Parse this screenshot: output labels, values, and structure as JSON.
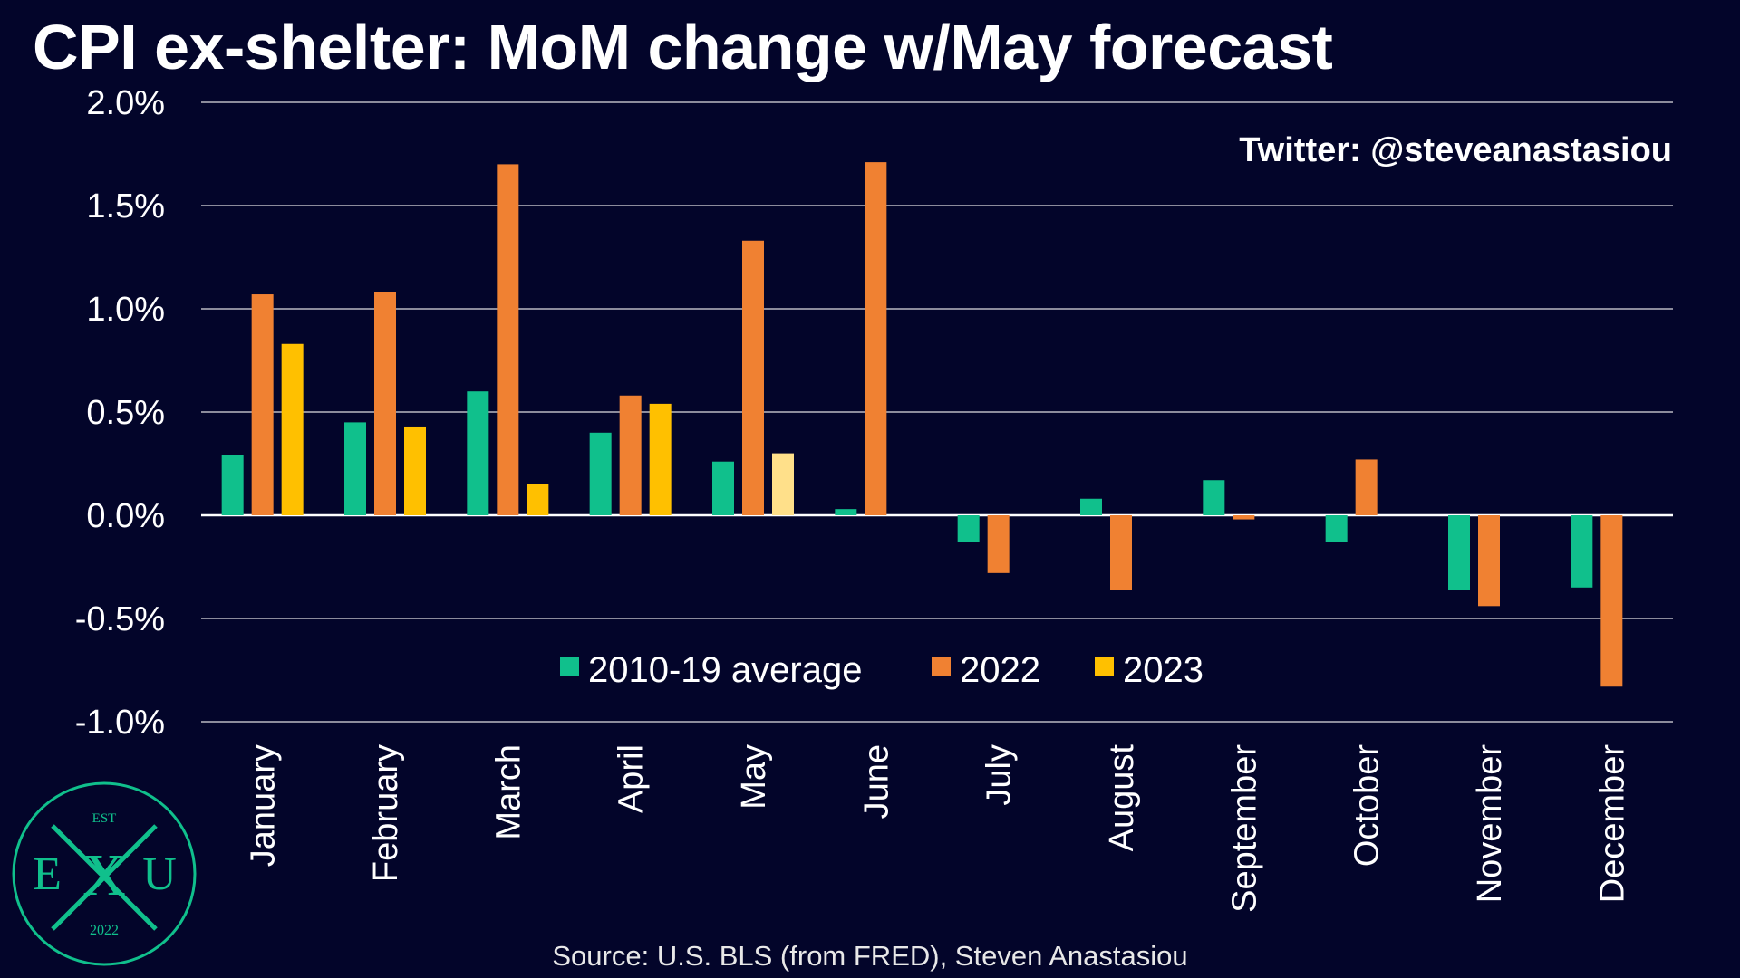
{
  "title": "CPI ex-shelter: MoM change w/May forecast",
  "source": "Source: U.S. BLS (from FRED), Steven Anastasiou",
  "watermark": "Twitter: @steveanastasiou",
  "logo": {
    "top": "EST",
    "left": "E",
    "center": "X",
    "right": "U",
    "bottom": "2022"
  },
  "colors": {
    "background": "#03052a",
    "avg": "#10c08c",
    "y2022": "#f08132",
    "y2023": "#ffc000",
    "y2023_forecast": "#ffe08a",
    "gridline": "#8c8c9c",
    "logo": "#10c08c"
  },
  "chart_data": {
    "type": "bar",
    "title": "CPI ex-shelter: MoM change w/May forecast",
    "categories": [
      "January",
      "February",
      "March",
      "April",
      "May",
      "June",
      "July",
      "August",
      "September",
      "October",
      "November",
      "December"
    ],
    "series": [
      {
        "name": "2010-19 average",
        "color": "#10c08c",
        "values": [
          0.29,
          0.45,
          0.6,
          0.4,
          0.26,
          0.03,
          -0.13,
          0.08,
          0.17,
          -0.13,
          -0.36,
          -0.35
        ]
      },
      {
        "name": "2022",
        "color": "#f08132",
        "values": [
          1.07,
          1.08,
          1.7,
          0.58,
          1.33,
          1.71,
          -0.28,
          -0.36,
          -0.02,
          0.27,
          -0.44,
          -0.83
        ]
      },
      {
        "name": "2023",
        "color": "#ffc000",
        "values": [
          0.83,
          0.43,
          0.15,
          0.54,
          0.3,
          null,
          null,
          null,
          null,
          null,
          null,
          null
        ],
        "forecast_index": 4,
        "forecast_color": "#ffe08a"
      }
    ],
    "ylim": [
      -1.0,
      2.0
    ],
    "yticks": [
      2.0,
      1.5,
      1.0,
      0.5,
      0.0,
      -0.5,
      -1.0
    ],
    "ytick_labels": [
      "2.0%",
      "1.5%",
      "1.0%",
      "0.5%",
      "0.0%",
      "-0.5%",
      "-1.0%"
    ],
    "xlabel": "",
    "ylabel": "",
    "grid": true,
    "legend_position": "bottom-center"
  }
}
